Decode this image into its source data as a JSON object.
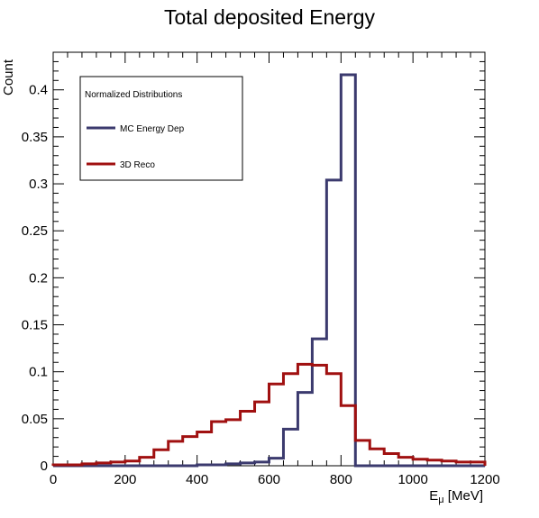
{
  "chart_data": {
    "type": "line",
    "title": "Total deposited Energy",
    "xlabel": "E",
    "xlabel_sub": "μ",
    "xlabel_unit": " [MeV]",
    "ylabel": "Count",
    "xlim": [
      0,
      1200
    ],
    "ylim": [
      0,
      0.44
    ],
    "x_ticks": [
      0,
      200,
      400,
      600,
      800,
      1000,
      1200
    ],
    "y_ticks": [
      0,
      0.05,
      0.1,
      0.15,
      0.2,
      0.25,
      0.3,
      0.35,
      0.4
    ],
    "y_tick_labels": [
      "0",
      "0.05",
      "0.1",
      "0.15",
      "0.2",
      "0.25",
      "0.3",
      "0.35",
      "0.4"
    ],
    "bin_edges": [
      0,
      40,
      80,
      120,
      160,
      200,
      240,
      280,
      320,
      360,
      400,
      440,
      480,
      520,
      560,
      600,
      640,
      680,
      720,
      760,
      800,
      840,
      880,
      920,
      960,
      1000,
      1040,
      1080,
      1120,
      1160,
      1200
    ],
    "legend": {
      "header": "Normalized Distributions",
      "position": "top-left"
    },
    "series": [
      {
        "name": "MC Energy Dep",
        "color": "#3b3a6e",
        "values": [
          0,
          0,
          0,
          0,
          0,
          0,
          0,
          0,
          0,
          0,
          0.001,
          0.001,
          0.002,
          0.003,
          0.004,
          0.008,
          0.039,
          0.078,
          0.135,
          0.304,
          0.416,
          0,
          0,
          0,
          0,
          0,
          0,
          0,
          0,
          0
        ]
      },
      {
        "name": "3D Reco",
        "color": "#a01010",
        "values": [
          0.001,
          0.001,
          0.002,
          0.003,
          0.004,
          0.005,
          0.009,
          0.017,
          0.026,
          0.031,
          0.036,
          0.047,
          0.049,
          0.058,
          0.068,
          0.087,
          0.098,
          0.108,
          0.107,
          0.098,
          0.064,
          0.027,
          0.018,
          0.013,
          0.009,
          0.007,
          0.006,
          0.005,
          0.004,
          0.004
        ]
      }
    ]
  }
}
